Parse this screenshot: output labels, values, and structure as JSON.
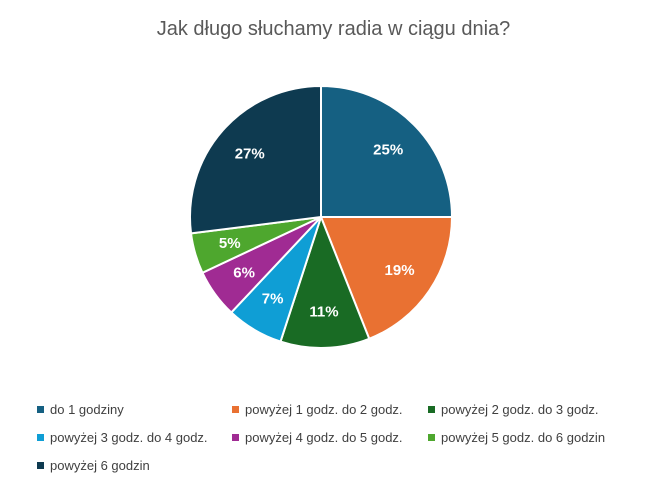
{
  "chart_data": {
    "type": "pie",
    "title": "Jak długo słuchamy radia w ciągu dnia?",
    "categories": [
      "do 1 godziny",
      "powyżej 1 godz. do 2 godz.",
      "powyżej 2 godz. do 3 godz.",
      "powyżej 3 godz. do 4 godz.",
      "powyżej 4 godz. do 5 godz.",
      "powyżej 5 godz. do 6 godzin",
      "powyżej 6 godzin"
    ],
    "values": [
      25,
      19,
      11,
      7,
      6,
      5,
      27
    ],
    "labels": [
      "25%",
      "19%",
      "11%",
      "7%",
      "6%",
      "5%",
      "27%"
    ],
    "colors": [
      "#156082",
      "#E97132",
      "#196B24",
      "#0F9ED5",
      "#A02B93",
      "#4EA72E",
      "#0E3A50"
    ],
    "legend_position": "bottom"
  }
}
